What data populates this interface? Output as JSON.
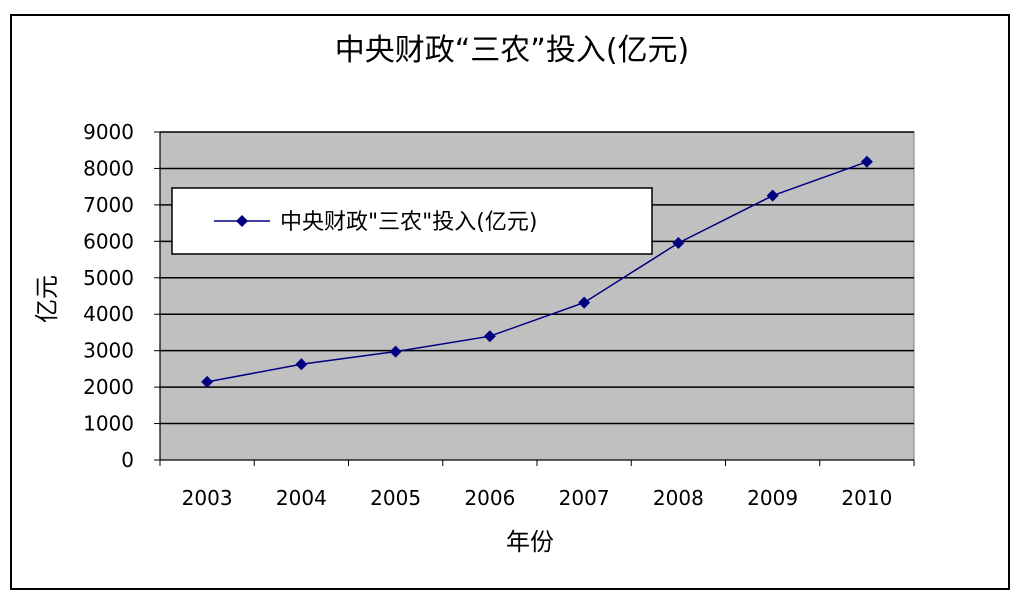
{
  "chart_data": {
    "type": "line",
    "title": "中央财政“三农”投入(亿元)",
    "xlabel": "年份",
    "ylabel": "亿元",
    "categories": [
      "2003",
      "2004",
      "2005",
      "2006",
      "2007",
      "2008",
      "2009",
      "2010"
    ],
    "series": [
      {
        "name": "中央财政\"三农\"投入(亿元)",
        "values": [
          2144,
          2626,
          2975,
          3397,
          4318,
          5955,
          7253,
          8183
        ],
        "color": "#000080"
      }
    ],
    "ylim": [
      0,
      9000
    ],
    "yticks": [
      "0",
      "1000",
      "2000",
      "3000",
      "4000",
      "5000",
      "6000",
      "7000",
      "8000",
      "9000"
    ],
    "grid": true,
    "plot_background": "#c0c0c0",
    "legend_position": "top-left inside plot"
  }
}
